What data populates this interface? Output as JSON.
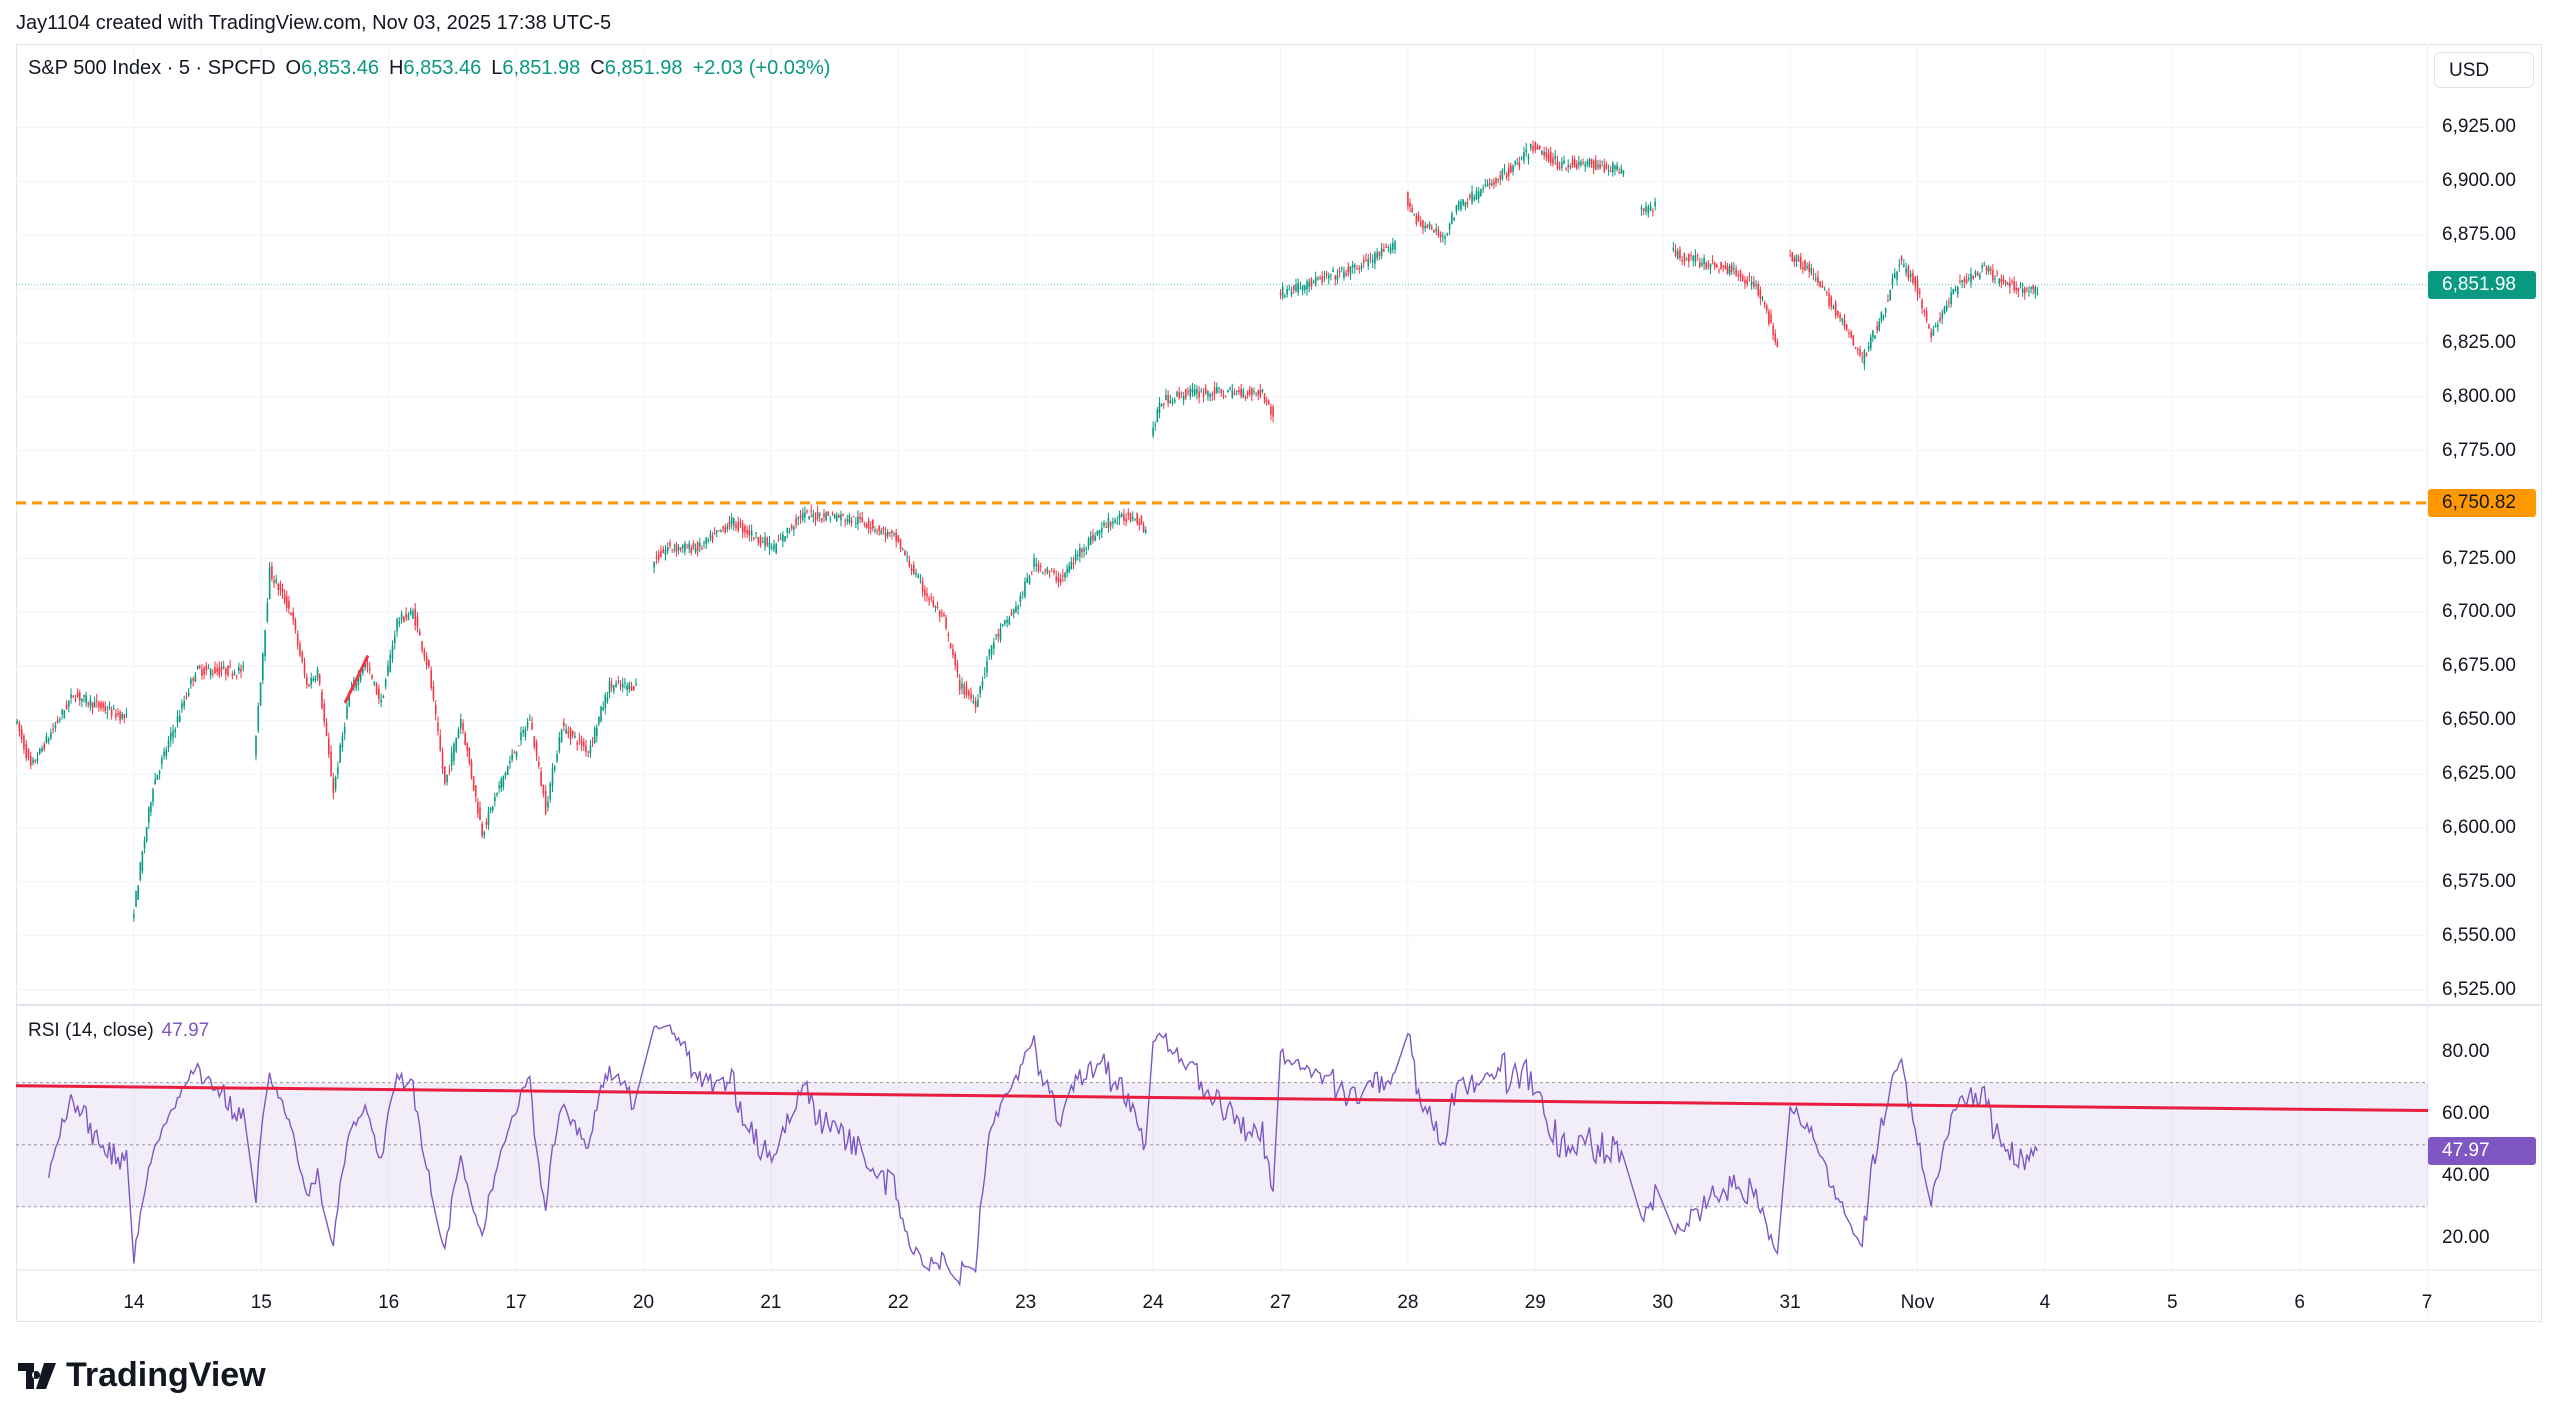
{
  "credit": "Jay1104 created with TradingView.com, Nov 03, 2025 17:38 UTC-5",
  "legend": {
    "symbol": "S&P 500 Index · 5 · SPCFD",
    "o_label": "O",
    "o": "6,853.46",
    "h_label": "H",
    "h": "6,853.46",
    "l_label": "L",
    "l": "6,851.98",
    "c_label": "C",
    "c": "6,851.98",
    "change": "+2.03 (+0.03%)"
  },
  "currency": "USD",
  "rsi_legend": {
    "label": "RSI (14, close)",
    "value": "47.97"
  },
  "logo": "TradingView",
  "colors": {
    "up": "#089981",
    "down": "#f23645",
    "rsi": "#7e57c2",
    "level": "#ff9800",
    "trend": "#e91e3f"
  },
  "chart_data": [
    {
      "type": "candlestick",
      "title": "S&P 500 Index · 5 · SPCFD",
      "ylim": [
        6525,
        6935
      ],
      "y_ticks": [
        "6,925.00",
        "6,900.00",
        "6,875.00",
        "6,850.00",
        "6,825.00",
        "6,800.00",
        "6,775.00",
        "6,750.00",
        "6,725.00",
        "6,700.00",
        "6,675.00",
        "6,650.00",
        "6,625.00",
        "6,600.00",
        "6,575.00",
        "6,550.00",
        "6,525.00"
      ],
      "x_ticks": [
        "14",
        "15",
        "16",
        "17",
        "20",
        "21",
        "22",
        "23",
        "24",
        "27",
        "28",
        "29",
        "30",
        "31",
        "Nov",
        "4",
        "5",
        "6",
        "7"
      ],
      "last_price": {
        "value": 6851.98,
        "label": "6,851.98"
      },
      "horizontal_level": {
        "value": 6750.82,
        "label": "6,750.82"
      },
      "path_columns": [
        "day",
        "hour",
        "price"
      ],
      "price_path": [
        [
          "13",
          2,
          6651
        ],
        [
          "13",
          5,
          6628
        ],
        [
          "13",
          13,
          6662
        ],
        [
          "13",
          19,
          6655
        ],
        [
          "13",
          23,
          6651
        ],
        [
          "14",
          0,
          6556
        ],
        [
          "14",
          4,
          6620
        ],
        [
          "14",
          12,
          6673
        ],
        [
          "14",
          21,
          6673
        ],
        [
          "14",
          23,
          6632
        ],
        [
          "15",
          2,
          6719
        ],
        [
          "15",
          6,
          6700
        ],
        [
          "15",
          9,
          6666
        ],
        [
          "15",
          11,
          6673
        ],
        [
          "15",
          14,
          6617
        ],
        [
          "15",
          17,
          6662
        ],
        [
          "15",
          20,
          6677
        ],
        [
          "15",
          23,
          6658
        ],
        [
          "16",
          2,
          6696
        ],
        [
          "16",
          5,
          6700
        ],
        [
          "16",
          8,
          6673
        ],
        [
          "16",
          11,
          6620
        ],
        [
          "16",
          14,
          6651
        ],
        [
          "16",
          18,
          6598
        ],
        [
          "16",
          22,
          6624
        ],
        [
          "17",
          3,
          6651
        ],
        [
          "17",
          6,
          6609
        ],
        [
          "17",
          9,
          6647
        ],
        [
          "17",
          14,
          6636
        ],
        [
          "17",
          18,
          6666
        ],
        [
          "17",
          23,
          6666
        ],
        [
          "20",
          0,
          6692
        ],
        [
          "20",
          2,
          6723
        ],
        [
          "20",
          5,
          6730
        ],
        [
          "20",
          11,
          6730
        ],
        [
          "20",
          17,
          6742
        ],
        [
          "21",
          1,
          6730
        ],
        [
          "21",
          6,
          6745
        ],
        [
          "21",
          12,
          6745
        ],
        [
          "21",
          18,
          6742
        ],
        [
          "22",
          0,
          6734
        ],
        [
          "22",
          5,
          6711
        ],
        [
          "22",
          9,
          6696
        ],
        [
          "22",
          12,
          6666
        ],
        [
          "22",
          15,
          6658
        ],
        [
          "22",
          18,
          6685
        ],
        [
          "22",
          23,
          6704
        ],
        [
          "23",
          2,
          6723
        ],
        [
          "23",
          7,
          6715
        ],
        [
          "23",
          11,
          6730
        ],
        [
          "23",
          16,
          6742
        ],
        [
          "23",
          21,
          6745
        ],
        [
          "23",
          23,
          6738
        ],
        [
          "24",
          0,
          6783
        ],
        [
          "24",
          2,
          6798
        ],
        [
          "24",
          7,
          6802
        ],
        [
          "24",
          17,
          6802
        ],
        [
          "24",
          21,
          6802
        ],
        [
          "24",
          23,
          6791
        ],
        [
          "27",
          0,
          6848
        ],
        [
          "27",
          5,
          6852
        ],
        [
          "27",
          14,
          6859
        ],
        [
          "27",
          22,
          6870
        ],
        [
          "28",
          0,
          6893
        ],
        [
          "28",
          2,
          6882
        ],
        [
          "28",
          7,
          6874
        ],
        [
          "28",
          10,
          6889
        ],
        [
          "28",
          15,
          6897
        ],
        [
          "28",
          21,
          6908
        ],
        [
          "29",
          0,
          6916
        ],
        [
          "29",
          5,
          6908
        ],
        [
          "29",
          11,
          6908
        ],
        [
          "29",
          17,
          6905
        ],
        [
          "29",
          18,
          6859
        ],
        [
          "29",
          20,
          6886
        ],
        [
          "29",
          23,
          6889
        ],
        [
          "30",
          0,
          6840
        ],
        [
          "30",
          2,
          6867
        ],
        [
          "30",
          7,
          6863
        ],
        [
          "30",
          13,
          6859
        ],
        [
          "30",
          18,
          6852
        ],
        [
          "30",
          22,
          6825
        ],
        [
          "31",
          0,
          6867
        ],
        [
          "31",
          4,
          6859
        ],
        [
          "31",
          9,
          6840
        ],
        [
          "31",
          14,
          6817
        ],
        [
          "31",
          18,
          6840
        ],
        [
          "31",
          21,
          6863
        ],
        [
          "Nov",
          0,
          6852
        ],
        [
          "Nov",
          3,
          6829
        ],
        [
          "Nov",
          8,
          6852
        ],
        [
          "Nov",
          13,
          6859
        ],
        [
          "Nov",
          17,
          6852
        ],
        [
          "Nov",
          23,
          6849
        ]
      ]
    },
    {
      "type": "line",
      "title": "RSI (14, close)",
      "ylim": [
        10,
        90
      ],
      "y_ticks": [
        "80.00",
        "60.00",
        "40.00",
        "20.00"
      ],
      "bands": [
        30,
        50,
        70
      ],
      "last_value": {
        "value": 47.97,
        "label": "47.97"
      },
      "trendline": {
        "start": 69,
        "end": 61
      }
    }
  ]
}
